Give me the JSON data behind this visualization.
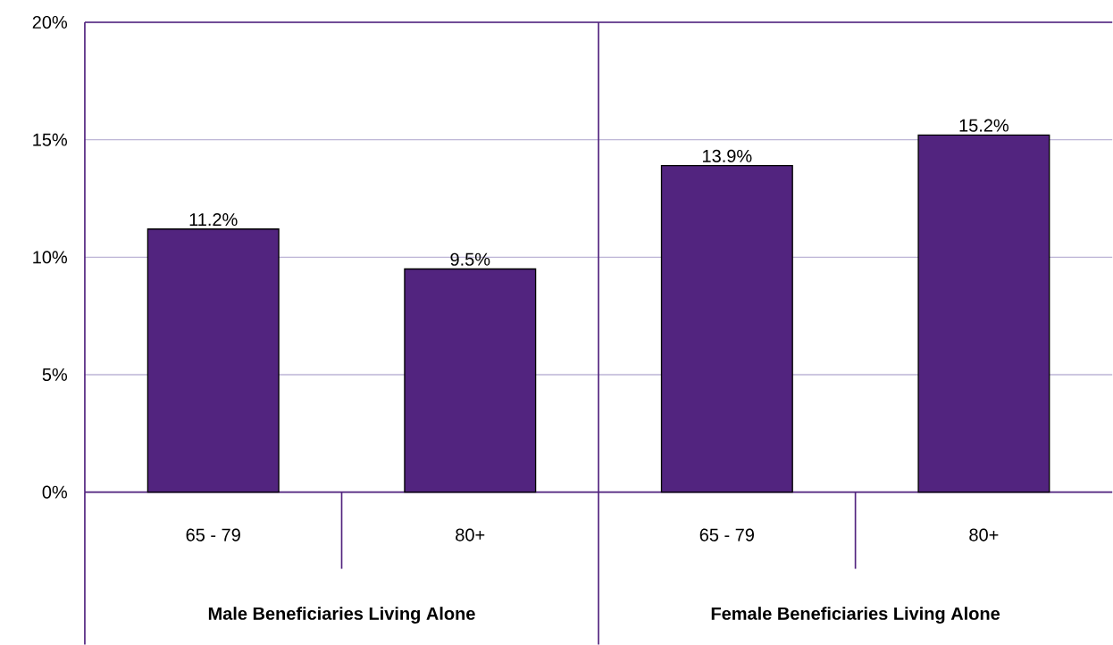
{
  "chart_data": [
    {
      "type": "bar",
      "categories": [
        "65 - 79",
        "80+"
      ],
      "values": [
        11.2,
        9.5
      ],
      "value_labels": [
        "11.2%",
        "9.5%"
      ],
      "color": "#52247f",
      "xlabel": "Male Beneficiaries Living Alone",
      "ylim": [
        0,
        20
      ],
      "yticks": [
        {
          "value": 0,
          "label": "0%"
        },
        {
          "value": 5,
          "label": "5%"
        },
        {
          "value": 10,
          "label": "10%"
        },
        {
          "value": 15,
          "label": "15%"
        },
        {
          "value": 20,
          "label": "20%"
        }
      ],
      "grid": "y"
    },
    {
      "type": "bar",
      "categories": [
        "65 - 79",
        "80+"
      ],
      "values": [
        13.9,
        15.2
      ],
      "value_labels": [
        "13.9%",
        "15.2%"
      ],
      "color": "#52247f",
      "xlabel": "Female Beneficiaries Living Alone",
      "ylim": [
        0,
        20
      ],
      "yticks": [
        {
          "value": 0,
          "label": null
        },
        {
          "value": 5,
          "label": null
        },
        {
          "value": 10,
          "label": null
        },
        {
          "value": 15,
          "label": null
        },
        {
          "value": 20,
          "label": null
        }
      ],
      "grid": "y",
      "tick_labels": "x"
    }
  ]
}
